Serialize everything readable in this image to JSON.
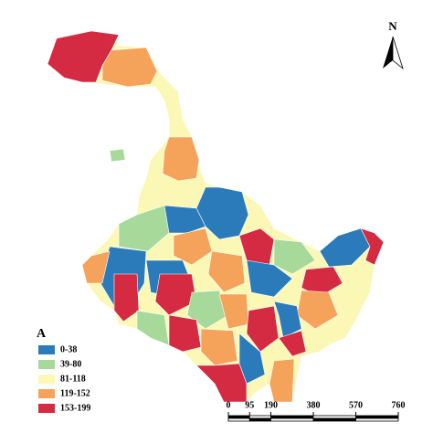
{
  "north_arrow": {
    "label": "N"
  },
  "legend": {
    "title": "A",
    "items": [
      {
        "label": "0-38",
        "color": "#2b7bba"
      },
      {
        "label": "39-80",
        "color": "#a6d99a"
      },
      {
        "label": "81-118",
        "color": "#fbf8b6"
      },
      {
        "label": "119-152",
        "color": "#f5a25a"
      },
      {
        "label": "153-199",
        "color": "#d42a42"
      }
    ]
  },
  "scale_bar": {
    "ticks": [
      0,
      95,
      190,
      380,
      570,
      760
    ]
  }
}
